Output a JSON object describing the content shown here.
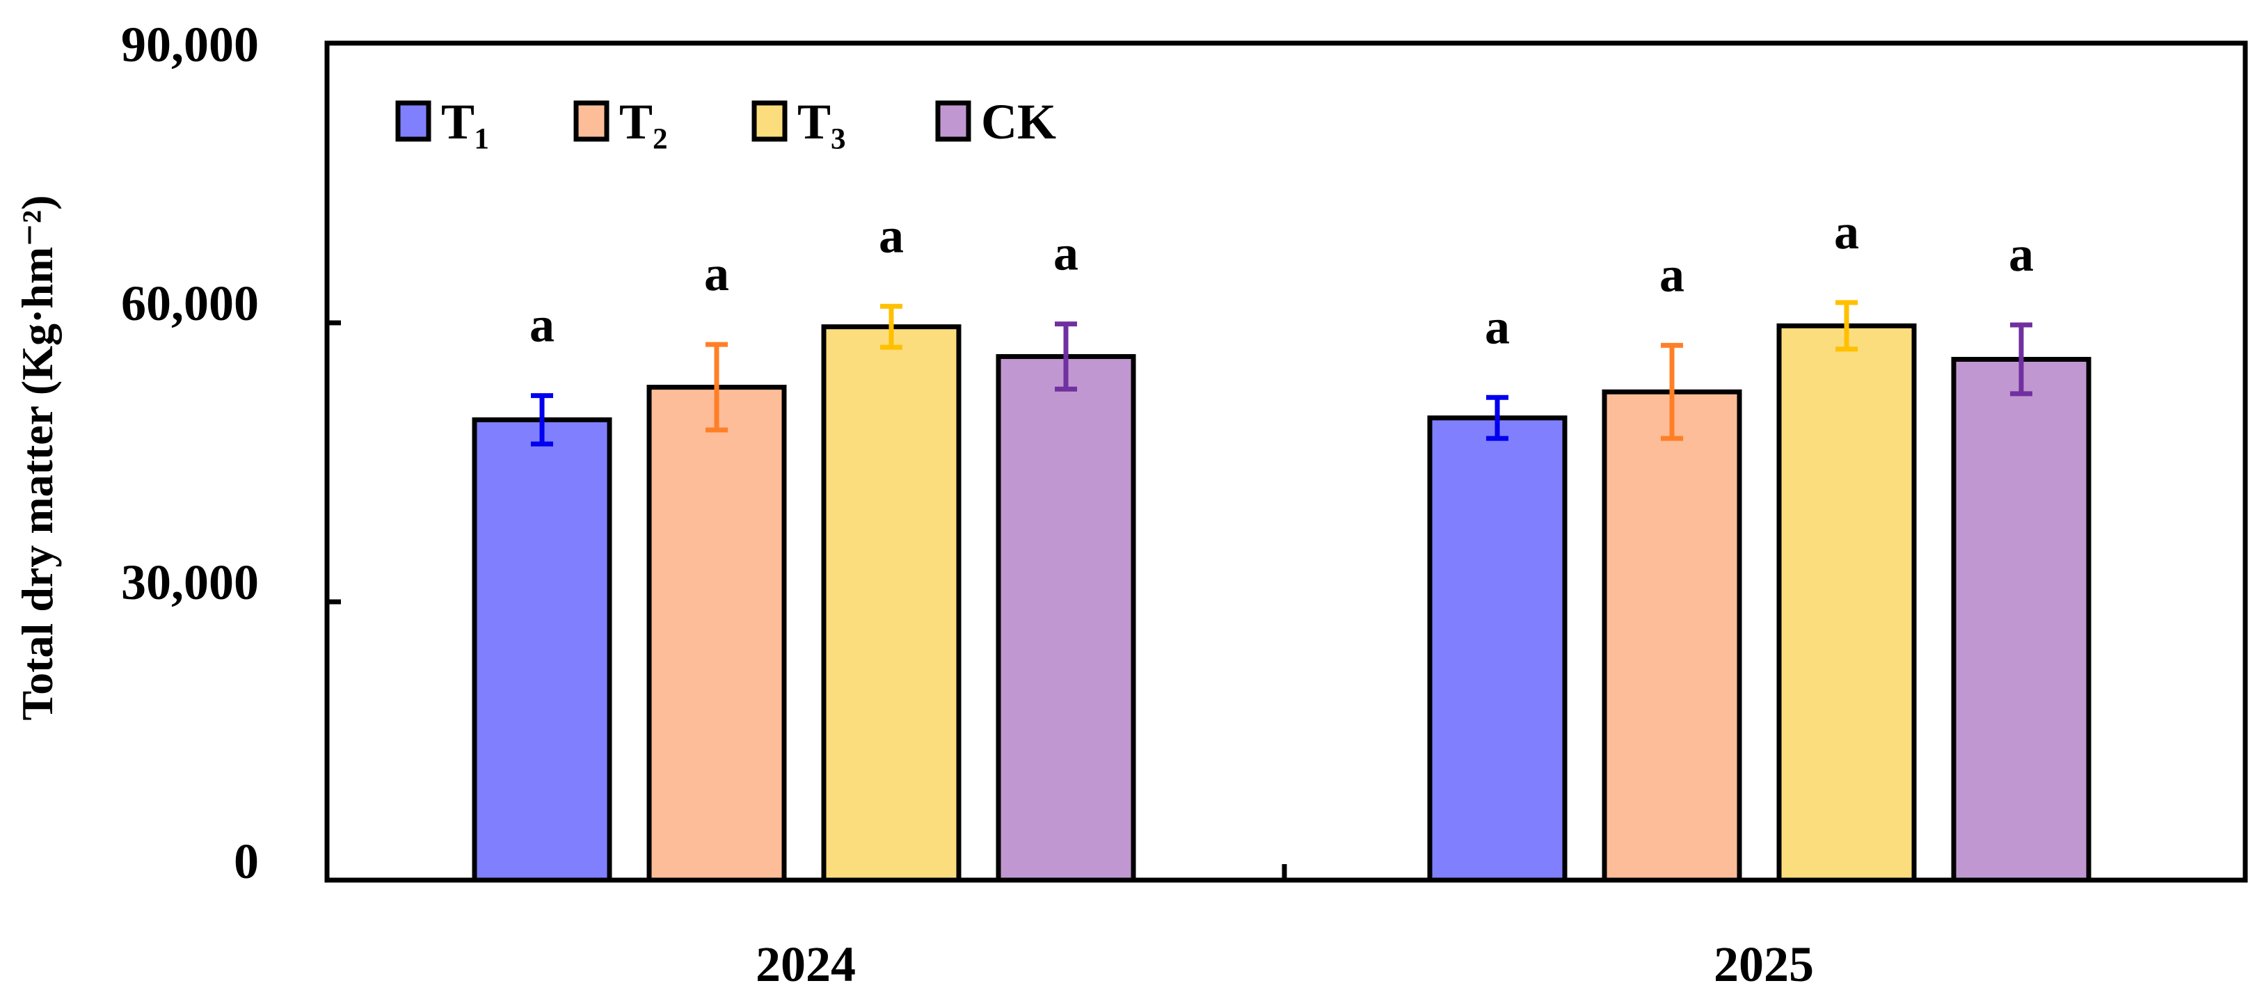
{
  "chart_data": {
    "type": "bar",
    "categories": [
      "2024",
      "2025"
    ],
    "ylabel": "Total dry matter  (Kg·hm⁻²)",
    "ylim": [
      0,
      90000
    ],
    "yticks": [
      "0",
      "30,000",
      "60,000",
      "90,000"
    ],
    "ytick_values": [
      0,
      30000,
      60000,
      90000
    ],
    "legend_position": "top-left",
    "series": [
      {
        "name": "T₁",
        "fill": "#8080FF",
        "error_color": "#0000EE",
        "values": [
          49500,
          49700
        ],
        "errors": [
          2600,
          2200
        ],
        "labels": [
          "a",
          "a"
        ]
      },
      {
        "name": "T₂",
        "fill": "#FCBD98",
        "error_color": "#FF7F27",
        "values": [
          53000,
          52500
        ],
        "errors": [
          4600,
          5000
        ],
        "labels": [
          "a",
          "a"
        ]
      },
      {
        "name": "T₃",
        "fill": "#FCDD7E",
        "error_color": "#FFC000",
        "values": [
          59500,
          59600
        ],
        "errors": [
          2200,
          2500
        ],
        "labels": [
          "a",
          "a"
        ]
      },
      {
        "name": "CK",
        "fill": "#C197D1",
        "error_color": "#7030A0",
        "values": [
          56300,
          56000
        ],
        "errors": [
          3500,
          3700
        ],
        "labels": [
          "a",
          "a"
        ]
      }
    ]
  }
}
